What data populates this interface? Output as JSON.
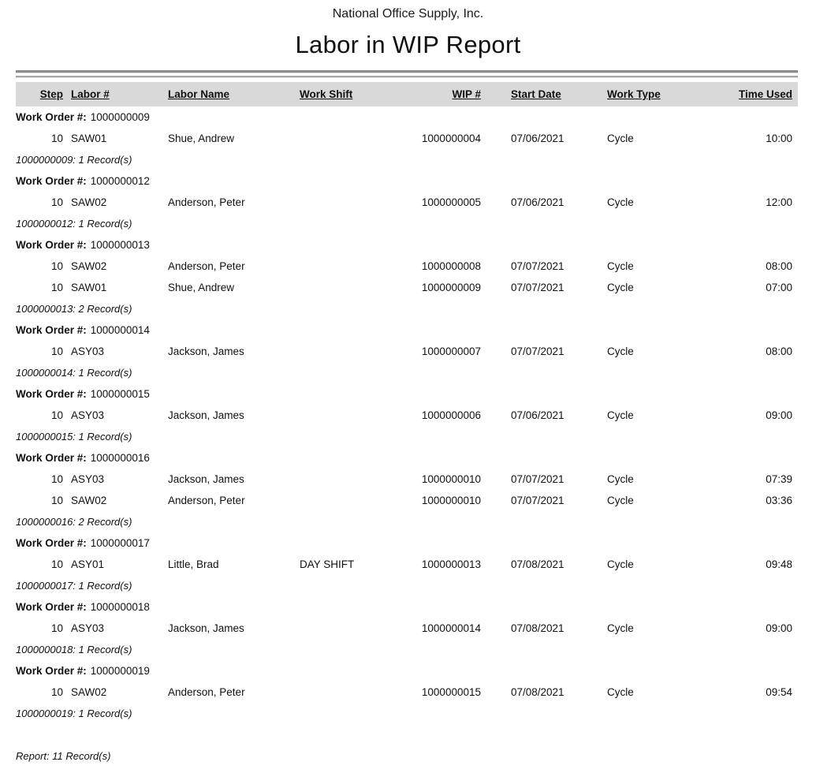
{
  "report": {
    "company": "National Office Supply, Inc.",
    "title": "Labor in WIP Report",
    "footer": "Report: 11 Record(s)",
    "colors": {
      "header_band": "#d9d9d9",
      "rule": "#8c8c8c",
      "text": "#111111"
    },
    "columns": [
      {
        "label": "Step"
      },
      {
        "label": "Labor #"
      },
      {
        "label": "Labor Name"
      },
      {
        "label": "Work Shift"
      },
      {
        "label": "WIP #"
      },
      {
        "label": "Start Date"
      },
      {
        "label": "Work Type"
      },
      {
        "label": "Time Used"
      }
    ],
    "groups": [
      {
        "work_order_label": "Work Order #:",
        "work_order_number": "1000000009",
        "rows": [
          {
            "step": "10",
            "labor_no": "SAW01",
            "labor_name": "Shue, Andrew",
            "work_shift": "",
            "wip_no": "1000000004",
            "start_date": "07/06/2021",
            "work_type": "Cycle",
            "time_used": "10:00"
          }
        ],
        "summary": "1000000009: 1 Record(s)"
      },
      {
        "work_order_label": "Work Order #:",
        "work_order_number": "1000000012",
        "rows": [
          {
            "step": "10",
            "labor_no": "SAW02",
            "labor_name": "Anderson, Peter",
            "work_shift": "",
            "wip_no": "1000000005",
            "start_date": "07/06/2021",
            "work_type": "Cycle",
            "time_used": "12:00"
          }
        ],
        "summary": "1000000012: 1 Record(s)"
      },
      {
        "work_order_label": "Work Order #:",
        "work_order_number": "1000000013",
        "rows": [
          {
            "step": "10",
            "labor_no": "SAW02",
            "labor_name": "Anderson, Peter",
            "work_shift": "",
            "wip_no": "1000000008",
            "start_date": "07/07/2021",
            "work_type": "Cycle",
            "time_used": "08:00"
          },
          {
            "step": "10",
            "labor_no": "SAW01",
            "labor_name": "Shue, Andrew",
            "work_shift": "",
            "wip_no": "1000000009",
            "start_date": "07/07/2021",
            "work_type": "Cycle",
            "time_used": "07:00"
          }
        ],
        "summary": "1000000013: 2 Record(s)"
      },
      {
        "work_order_label": "Work Order #:",
        "work_order_number": "1000000014",
        "rows": [
          {
            "step": "10",
            "labor_no": "ASY03",
            "labor_name": "Jackson, James",
            "work_shift": "",
            "wip_no": "1000000007",
            "start_date": "07/07/2021",
            "work_type": "Cycle",
            "time_used": "08:00"
          }
        ],
        "summary": "1000000014: 1 Record(s)"
      },
      {
        "work_order_label": "Work Order #:",
        "work_order_number": "1000000015",
        "rows": [
          {
            "step": "10",
            "labor_no": "ASY03",
            "labor_name": "Jackson, James",
            "work_shift": "",
            "wip_no": "1000000006",
            "start_date": "07/06/2021",
            "work_type": "Cycle",
            "time_used": "09:00"
          }
        ],
        "summary": "1000000015: 1 Record(s)"
      },
      {
        "work_order_label": "Work Order #:",
        "work_order_number": "1000000016",
        "rows": [
          {
            "step": "10",
            "labor_no": "ASY03",
            "labor_name": "Jackson, James",
            "work_shift": "",
            "wip_no": "1000000010",
            "start_date": "07/07/2021",
            "work_type": "Cycle",
            "time_used": "07:39"
          },
          {
            "step": "10",
            "labor_no": "SAW02",
            "labor_name": "Anderson, Peter",
            "work_shift": "",
            "wip_no": "1000000010",
            "start_date": "07/07/2021",
            "work_type": "Cycle",
            "time_used": "03:36"
          }
        ],
        "summary": "1000000016: 2 Record(s)"
      },
      {
        "work_order_label": "Work Order #:",
        "work_order_number": "1000000017",
        "rows": [
          {
            "step": "10",
            "labor_no": "ASY01",
            "labor_name": "Little, Brad",
            "work_shift": "DAY SHIFT",
            "wip_no": "1000000013",
            "start_date": "07/08/2021",
            "work_type": "Cycle",
            "time_used": "09:48"
          }
        ],
        "summary": "1000000017: 1 Record(s)"
      },
      {
        "work_order_label": "Work Order #:",
        "work_order_number": "1000000018",
        "rows": [
          {
            "step": "10",
            "labor_no": "ASY03",
            "labor_name": "Jackson, James",
            "work_shift": "",
            "wip_no": "1000000014",
            "start_date": "07/08/2021",
            "work_type": "Cycle",
            "time_used": "09:00"
          }
        ],
        "summary": "1000000018: 1 Record(s)"
      },
      {
        "work_order_label": "Work Order #:",
        "work_order_number": "1000000019",
        "rows": [
          {
            "step": "10",
            "labor_no": "SAW02",
            "labor_name": "Anderson, Peter",
            "work_shift": "",
            "wip_no": "1000000015",
            "start_date": "07/08/2021",
            "work_type": "Cycle",
            "time_used": "09:54"
          }
        ],
        "summary": "1000000019: 1 Record(s)"
      }
    ]
  }
}
